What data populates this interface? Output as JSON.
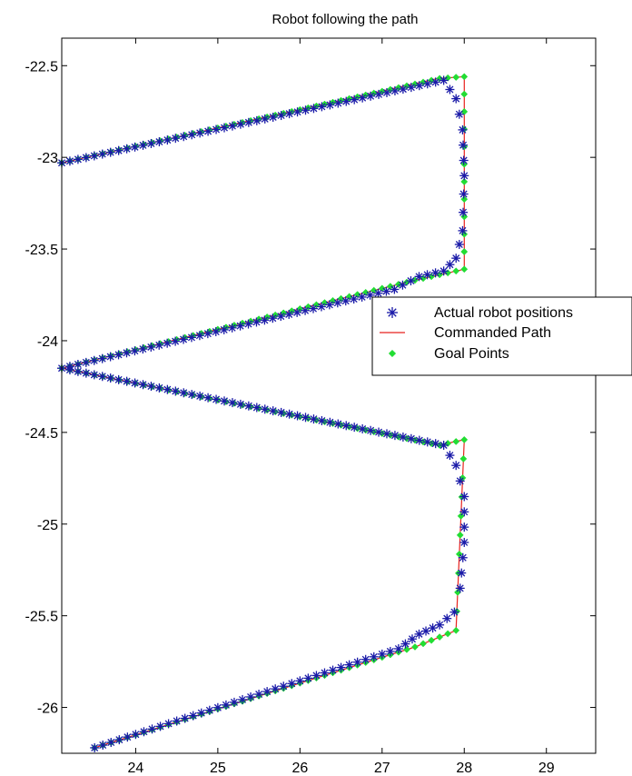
{
  "chart_data": {
    "type": "line",
    "title": "Robot following the path",
    "xlabel": "",
    "ylabel": "",
    "xlim": [
      23.1,
      29.6
    ],
    "ylim": [
      -26.25,
      -22.35
    ],
    "xticks": [
      24,
      25,
      26,
      27,
      28,
      29
    ],
    "yticks": [
      -22.5,
      -23,
      -23.5,
      -24,
      -24.5,
      -25,
      -25.5,
      -26
    ],
    "xtick_labels": [
      "24",
      "25",
      "26",
      "27",
      "28",
      "29"
    ],
    "ytick_labels": [
      "-22.5",
      "-23",
      "-23.5",
      "-24",
      "-24.5",
      "-25",
      "-25.5",
      "-26"
    ],
    "grid": false,
    "legend_position": "right",
    "colors": {
      "actual": "#1a1aa8",
      "commanded": "#e8221e",
      "goal": "#22dd33",
      "axes": "#000000"
    },
    "series": [
      {
        "name": "Actual robot positions",
        "marker": "asterisk",
        "vertices": [
          [
            23.1,
            -23.03
          ],
          [
            27.75,
            -22.58
          ],
          [
            27.9,
            -22.68
          ],
          [
            27.98,
            -22.85
          ],
          [
            28.0,
            -23.1
          ],
          [
            27.98,
            -23.4
          ],
          [
            27.9,
            -23.55
          ],
          [
            27.75,
            -23.62
          ],
          [
            27.45,
            -23.65
          ],
          [
            27.15,
            -23.72
          ],
          [
            23.1,
            -24.15
          ],
          [
            27.75,
            -24.57
          ],
          [
            27.9,
            -24.68
          ],
          [
            28.0,
            -24.85
          ],
          [
            28.0,
            -25.1
          ],
          [
            27.95,
            -25.35
          ],
          [
            27.88,
            -25.48
          ],
          [
            27.7,
            -25.55
          ],
          [
            27.45,
            -25.6
          ],
          [
            27.2,
            -25.68
          ],
          [
            23.5,
            -26.22
          ]
        ],
        "spacing": 0.1
      },
      {
        "name": "Commanded Path",
        "style": "line",
        "points": [
          [
            23.1,
            -23.03
          ],
          [
            27.68,
            -22.57
          ],
          [
            28.0,
            -22.56
          ],
          [
            28.0,
            -23.61
          ],
          [
            27.4,
            -23.67
          ],
          [
            23.1,
            -24.15
          ],
          [
            27.68,
            -24.57
          ],
          [
            28.0,
            -24.54
          ],
          [
            27.9,
            -25.58
          ],
          [
            27.4,
            -25.67
          ],
          [
            23.5,
            -26.22
          ]
        ]
      },
      {
        "name": "Goal Points",
        "marker": "diamond",
        "vertices": [
          [
            23.1,
            -23.03
          ],
          [
            27.7,
            -22.57
          ],
          [
            28.0,
            -22.56
          ],
          [
            28.0,
            -23.61
          ],
          [
            27.4,
            -23.67
          ],
          [
            23.1,
            -24.15
          ],
          [
            27.7,
            -24.57
          ],
          [
            28.0,
            -24.54
          ],
          [
            27.9,
            -25.58
          ],
          [
            27.4,
            -25.67
          ],
          [
            23.5,
            -26.22
          ]
        ],
        "spacing": 0.1
      }
    ]
  }
}
